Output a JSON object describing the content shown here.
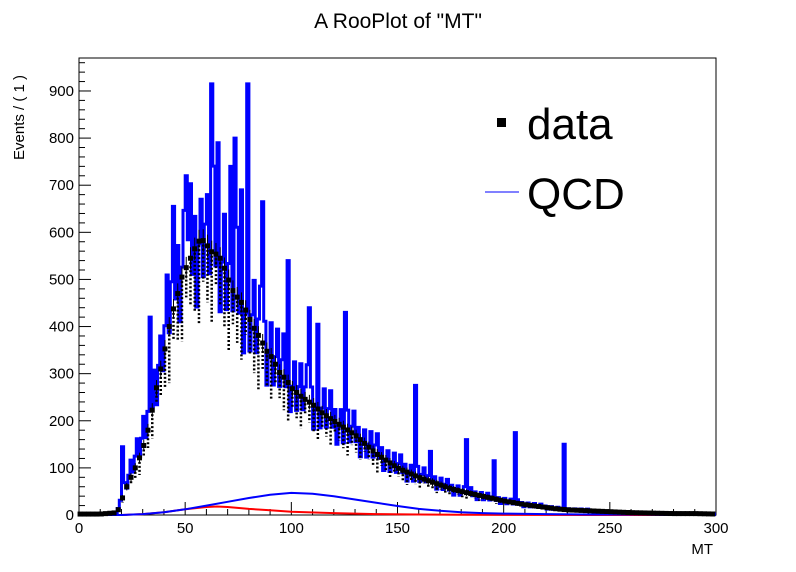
{
  "chart_data": {
    "type": "line",
    "title": "A RooPlot of \"MT\"",
    "xlabel": "MT",
    "ylabel": "Events / ( 1 )",
    "xlim": [
      0,
      300
    ],
    "ylim": [
      0,
      970
    ],
    "x_ticks": [
      0,
      50,
      100,
      150,
      200,
      250,
      300
    ],
    "y_ticks": [
      0,
      100,
      200,
      300,
      400,
      500,
      600,
      700,
      800,
      900
    ],
    "legend": {
      "placement": "top-right",
      "entries": [
        "data",
        "QCD"
      ]
    },
    "colors": {
      "data": "#000000",
      "qcd": "#0000ff",
      "component": "#ff0000",
      "frame": "#000000"
    },
    "series": [
      {
        "name": "data",
        "x": [
          0,
          10,
          18,
          20,
          22,
          24,
          26,
          28,
          30,
          32,
          34,
          36,
          38,
          40,
          42,
          44,
          46,
          48,
          50,
          52,
          54,
          56,
          58,
          60,
          62,
          64,
          66,
          68,
          70,
          72,
          74,
          76,
          78,
          80,
          82,
          84,
          86,
          88,
          90,
          92,
          94,
          96,
          98,
          100,
          105,
          110,
          115,
          120,
          125,
          130,
          135,
          140,
          145,
          150,
          155,
          160,
          165,
          170,
          175,
          180,
          185,
          190,
          195,
          200,
          205,
          210,
          215,
          220,
          225,
          230,
          240,
          250,
          260,
          270,
          280,
          290,
          300
        ],
        "y": [
          2,
          2,
          5,
          30,
          55,
          75,
          95,
          115,
          140,
          170,
          210,
          260,
          300,
          340,
          390,
          430,
          460,
          500,
          520,
          540,
          560,
          580,
          585,
          575,
          560,
          555,
          550,
          530,
          505,
          480,
          465,
          455,
          440,
          420,
          400,
          385,
          370,
          350,
          340,
          325,
          305,
          295,
          285,
          270,
          250,
          235,
          215,
          200,
          185,
          170,
          150,
          130,
          115,
          100,
          90,
          80,
          72,
          64,
          56,
          50,
          45,
          40,
          35,
          30,
          26,
          22,
          19,
          16,
          13,
          11,
          9,
          7,
          5,
          4,
          3,
          3,
          2
        ]
      },
      {
        "name": "QCD",
        "x": [
          0,
          10,
          18,
          20,
          22,
          24,
          26,
          28,
          30,
          32,
          34,
          36,
          38,
          40,
          42,
          44,
          46,
          48,
          50,
          52,
          54,
          56,
          58,
          60,
          62,
          64,
          66,
          68,
          70,
          72,
          74,
          76,
          78,
          80,
          82,
          84,
          86,
          88,
          90,
          92,
          94,
          96,
          98,
          100,
          105,
          110,
          115,
          120,
          125,
          130,
          135,
          140,
          145,
          150,
          155,
          160,
          165,
          170,
          175,
          180,
          185,
          190,
          195,
          200,
          205,
          210,
          215,
          220,
          225,
          230,
          240,
          250,
          260,
          270,
          280,
          290,
          300
        ],
        "y": [
          2,
          2,
          5,
          40,
          70,
          95,
          120,
          140,
          160,
          190,
          230,
          280,
          330,
          370,
          420,
          460,
          490,
          520,
          545,
          560,
          570,
          595,
          640,
          610,
          600,
          590,
          580,
          560,
          540,
          515,
          495,
          470,
          455,
          440,
          420,
          400,
          385,
          370,
          360,
          340,
          325,
          310,
          300,
          290,
          265,
          245,
          225,
          205,
          190,
          175,
          155,
          140,
          120,
          105,
          95,
          85,
          75,
          66,
          58,
          52,
          46,
          41,
          36,
          31,
          27,
          23,
          20,
          17,
          14,
          12,
          10,
          8,
          6,
          4,
          3,
          3,
          2
        ],
        "spikes": [
          {
            "x": 20,
            "y": 145
          },
          {
            "x": 33,
            "y": 420
          },
          {
            "x": 38,
            "y": 380
          },
          {
            "x": 44,
            "y": 655
          },
          {
            "x": 50,
            "y": 720
          },
          {
            "x": 57,
            "y": 670
          },
          {
            "x": 60,
            "y": 680
          },
          {
            "x": 62,
            "y": 915
          },
          {
            "x": 65,
            "y": 790
          },
          {
            "x": 71,
            "y": 740
          },
          {
            "x": 73,
            "y": 800
          },
          {
            "x": 76,
            "y": 690
          },
          {
            "x": 79,
            "y": 915
          },
          {
            "x": 86,
            "y": 665
          },
          {
            "x": 98,
            "y": 540
          },
          {
            "x": 108,
            "y": 440
          },
          {
            "x": 112,
            "y": 405
          },
          {
            "x": 125,
            "y": 430
          },
          {
            "x": 158,
            "y": 275
          },
          {
            "x": 165,
            "y": 135
          },
          {
            "x": 182,
            "y": 160
          },
          {
            "x": 195,
            "y": 115
          },
          {
            "x": 205,
            "y": 175
          },
          {
            "x": 228,
            "y": 150
          }
        ]
      },
      {
        "name": "",
        "x": [
          0,
          20,
          30,
          40,
          50,
          60,
          70,
          80,
          90,
          100,
          110,
          120,
          130,
          140,
          150,
          160,
          170,
          180,
          190,
          200,
          220,
          240,
          260,
          280,
          300
        ],
        "y": [
          0,
          0,
          2,
          6,
          12,
          20,
          28,
          36,
          43,
          47,
          45,
          40,
          33,
          26,
          19,
          13,
          9,
          6,
          4,
          3,
          2,
          1,
          1,
          0,
          0
        ]
      },
      {
        "name": "",
        "x": [
          0,
          20,
          30,
          40,
          50,
          60,
          65,
          70,
          80,
          90,
          100,
          120,
          140,
          160,
          180,
          200,
          240,
          300
        ],
        "y": [
          0,
          0,
          2,
          6,
          12,
          17,
          18,
          17,
          13,
          10,
          7,
          4,
          2,
          1,
          0.5,
          0.3,
          0.1,
          0
        ]
      }
    ]
  }
}
